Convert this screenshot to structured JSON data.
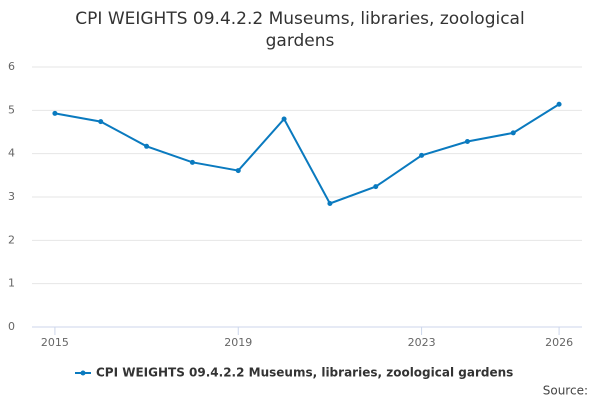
{
  "chart_data": {
    "type": "line",
    "title": "CPI WEIGHTS 09.4.2.2 Museums, libraries, zoological gardens",
    "x": [
      2015,
      2016,
      2017,
      2018,
      2019,
      2020,
      2021,
      2022,
      2023,
      2024,
      2025,
      2026
    ],
    "series": [
      {
        "name": "CPI WEIGHTS 09.4.2.2 Museums, libraries, zoological gardens",
        "color": "#0a7abf",
        "values": [
          4.93,
          4.74,
          4.17,
          3.8,
          3.61,
          4.8,
          2.85,
          3.24,
          3.96,
          4.28,
          4.48,
          5.14
        ]
      }
    ],
    "xlim": [
      2014.5,
      2026.5
    ],
    "xticks": [
      2015,
      2019,
      2023,
      2026
    ],
    "ylim": [
      0,
      6
    ],
    "yticks": [
      0,
      1,
      2,
      3,
      4,
      5,
      6
    ],
    "grid": true,
    "legend": "bottom",
    "source": "Source:"
  }
}
